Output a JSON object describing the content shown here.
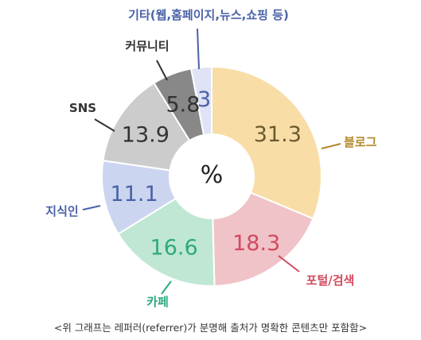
{
  "chart_data": {
    "type": "pie",
    "variant": "donut",
    "center_label": "%",
    "slices": [
      {
        "label": "블로그",
        "value": 31.3,
        "fill": "#f9dda7",
        "label_color": "#b3882b",
        "value_color": "#6b5a2e"
      },
      {
        "label": "포털/검색",
        "value": 18.3,
        "fill": "#f0c3c8",
        "label_color": "#d24a5e",
        "value_color": "#d24a5e"
      },
      {
        "label": "카페",
        "value": 16.6,
        "fill": "#bfe7d4",
        "label_color": "#2eaa7c",
        "value_color": "#2eaa7c"
      },
      {
        "label": "지식인",
        "value": 11.1,
        "fill": "#ccd5f0",
        "label_color": "#4a62a8",
        "value_color": "#4a62a8"
      },
      {
        "label": "SNS",
        "value": 13.9,
        "fill": "#cccccc",
        "label_color": "#333333",
        "value_color": "#333333"
      },
      {
        "label": "커뮤니티",
        "value": 5.8,
        "fill": "#888888",
        "label_color": "#333333",
        "value_color": "#333333"
      },
      {
        "label": "기타(웹,홈페이지,뉴스,쇼핑 등)",
        "value": 3,
        "fill": "#dfe3f5",
        "label_color": "#4a62a8",
        "value_color": "#4a62a8"
      }
    ],
    "legend": "none"
  },
  "caption": "<위 그래프는 레퍼러(referrer)가 분명해 출처가 명확한 콘텐츠만 포함함>"
}
